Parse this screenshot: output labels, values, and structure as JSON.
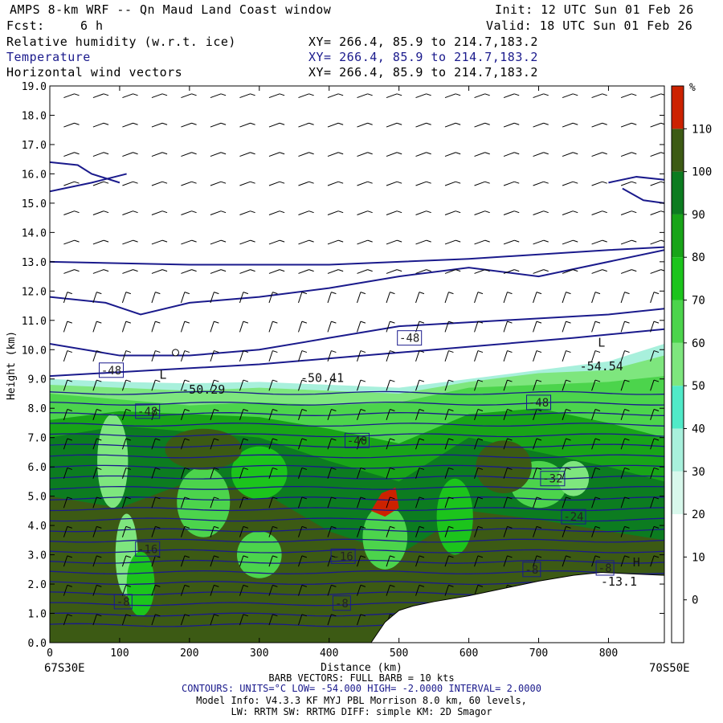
{
  "header": {
    "title": "AMPS 8-km WRF -- Qn Maud Land Coast window",
    "fcst_label": "Fcst:",
    "fcst_value": "6 h",
    "init": "Init: 12 UTC Sun 01 Feb 26",
    "valid": "Valid: 18 UTC Sun 01 Feb 26",
    "fields": [
      {
        "name": "Relative humidity (w.r.t. ice)",
        "xy": "XY= 266.4, 85.9 to 214.7,183.2"
      },
      {
        "name": "Temperature",
        "xy": "XY= 266.4, 85.9 to 214.7,183.2"
      },
      {
        "name": "Horizontal wind vectors",
        "xy": "XY= 266.4, 85.9 to 214.7,183.2"
      }
    ]
  },
  "chart_data": {
    "type": "heatmap",
    "xlabel": "Distance (km)",
    "ylabel": "Height (km)",
    "xlim": [
      0,
      880
    ],
    "ylim": [
      0,
      19
    ],
    "x_ticks": [
      0,
      100,
      200,
      300,
      400,
      500,
      600,
      700,
      800
    ],
    "y_ticks": [
      "0.0",
      "1.0",
      "2.0",
      "3.0",
      "4.0",
      "5.0",
      "6.0",
      "7.0",
      "8.0",
      "9.0",
      "10.0",
      "11.0",
      "12.0",
      "13.0",
      "14.0",
      "15.0",
      "16.0",
      "17.0",
      "18.0",
      "19.0"
    ],
    "left_endpoint": "67S30E",
    "right_endpoint": "70S50E",
    "colorbar": {
      "unit": "%",
      "levels": [
        0,
        10,
        20,
        30,
        40,
        50,
        60,
        70,
        80,
        90,
        100,
        110
      ],
      "colors": [
        "#ffffff",
        "#ffffff",
        "#ffffff",
        "#d8f8ec",
        "#a8f0dc",
        "#50eac8",
        "#7ee67e",
        "#4cd44c",
        "#1cc41c",
        "#18a418",
        "#0c7c20",
        "#3c5a14",
        "#cc2200"
      ]
    },
    "terrain_profile": [
      [
        0,
        0
      ],
      [
        460,
        0
      ],
      [
        470,
        0.35
      ],
      [
        480,
        0.7
      ],
      [
        490,
        0.9
      ],
      [
        500,
        1.1
      ],
      [
        520,
        1.25
      ],
      [
        550,
        1.4
      ],
      [
        600,
        1.6
      ],
      [
        650,
        1.85
      ],
      [
        700,
        2.1
      ],
      [
        750,
        2.3
      ],
      [
        790,
        2.4
      ],
      [
        830,
        2.35
      ],
      [
        880,
        2.3
      ]
    ],
    "contour_labels": [
      "-48",
      "-48",
      "-48",
      "-48",
      "-40",
      "-32",
      "-24",
      "-16",
      "-16",
      "-8",
      "-8",
      "-8",
      "-8"
    ],
    "extrema": [
      "L",
      "-50.29",
      "-50.41",
      "L",
      "-54.54",
      "H",
      "-13.1"
    ],
    "contour_color": "#1a1a8c"
  },
  "footer": {
    "barb": "BARB VECTORS: FULL BARB = 10 kts",
    "contours": "CONTOURS: UNITS=°C LOW= -54.000 HIGH= -2.0000 INTERVAL= 2.0000",
    "model": "Model Info: V4.3.3 KF MYJ PBL Morrison 8.0 km, 60 levels,",
    "phys": "LW: RRTM SW: RRTMG DIFF: simple KM: 2D Smagor"
  }
}
